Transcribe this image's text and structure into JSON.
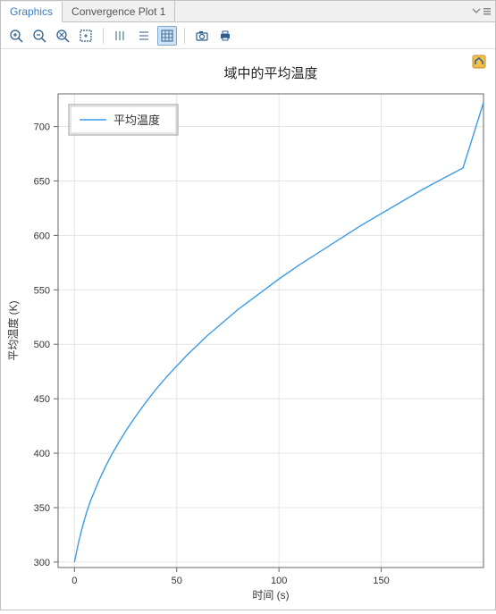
{
  "tabs": {
    "graphics": "Graphics",
    "convergence": "Convergence Plot 1",
    "active": "graphics"
  },
  "toolbar": {
    "zoom_in": "zoom-in",
    "zoom_out": "zoom-out",
    "zoom_reset": "zoom-reset",
    "zoom_box": "zoom-box",
    "ticks_x": "ticks-x",
    "ticks_y": "ticks-y",
    "grid_toggle": "grid-toggle",
    "camera": "camera",
    "print": "print"
  },
  "chart": {
    "type": "line",
    "title": "域中的平均温度",
    "title_fontsize": 15,
    "xlabel": "时间 (s)",
    "ylabel": "平均温度 (K)",
    "label_fontsize": 12,
    "tick_fontsize": 11,
    "xlim": [
      -8,
      200
    ],
    "ylim": [
      295,
      730
    ],
    "xticks": [
      0,
      50,
      100,
      150
    ],
    "yticks": [
      300,
      350,
      400,
      450,
      500,
      550,
      600,
      650,
      700
    ],
    "background_color": "#ffffff",
    "axis_color": "#666666",
    "grid_color": "#e4e4e4",
    "line_color": "#3b9be7",
    "line_width": 1.4,
    "legend": {
      "label": "平均温度",
      "position": "top-left",
      "border_color": "#999999",
      "inner_border_color": "#cccccc"
    },
    "data": {
      "x": [
        0,
        2,
        4,
        6,
        8,
        10,
        12,
        15,
        18,
        22,
        26,
        30,
        35,
        40,
        45,
        50,
        55,
        60,
        65,
        70,
        75,
        80,
        85,
        90,
        95,
        100,
        110,
        120,
        130,
        140,
        150,
        160,
        170,
        180,
        190,
        200
      ],
      "y": [
        300,
        318,
        333,
        346,
        357,
        366,
        375,
        387,
        398,
        411,
        423,
        434,
        447,
        459,
        470,
        480,
        490,
        499,
        508,
        516,
        524,
        532,
        539,
        546,
        553,
        560,
        573,
        585,
        597,
        609,
        620,
        631,
        642,
        652,
        662,
        722
      ]
    }
  }
}
